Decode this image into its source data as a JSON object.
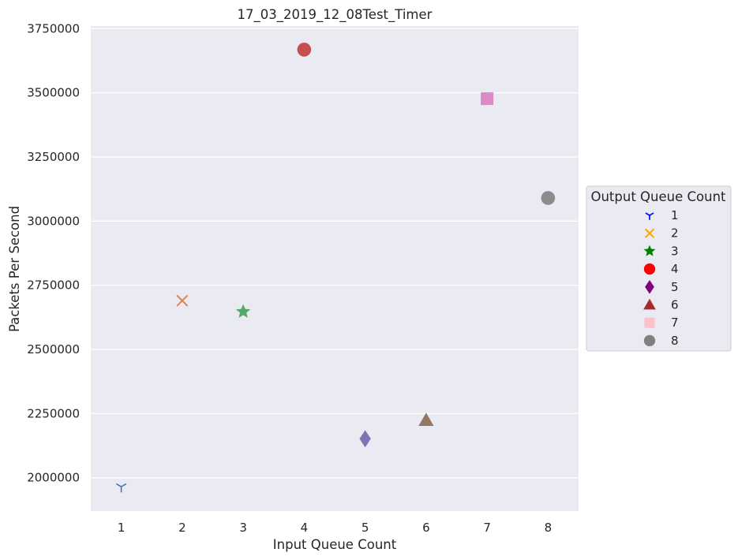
{
  "chart_data": {
    "type": "scatter",
    "title": "17_03_2019_12_08Test_Timer",
    "xlabel": "Input Queue Count",
    "ylabel": "Packets Per Second",
    "xlim": [
      0.5,
      8.5
    ],
    "ylim": [
      1870000,
      3760000
    ],
    "xticks": [
      1,
      2,
      3,
      4,
      5,
      6,
      7,
      8
    ],
    "xtick_labels": [
      "1",
      "2",
      "3",
      "4",
      "5",
      "6",
      "7",
      "8"
    ],
    "yticks": [
      2000000,
      2250000,
      2500000,
      2750000,
      3000000,
      3250000,
      3500000,
      3750000
    ],
    "ytick_labels": [
      "2000000",
      "2250000",
      "2500000",
      "2750000",
      "3000000",
      "3250000",
      "3500000",
      "3750000"
    ],
    "grid": true,
    "background": "#eaeaf2",
    "legend": {
      "title": "Output Queue Count",
      "placement": "right",
      "entries": [
        {
          "label": "1",
          "marker": "tri_down",
          "color": "#0000ff"
        },
        {
          "label": "2",
          "marker": "x",
          "color": "#ffa500"
        },
        {
          "label": "3",
          "marker": "star",
          "color": "#008000"
        },
        {
          "label": "4",
          "marker": "circle",
          "color": "#ff0000"
        },
        {
          "label": "5",
          "marker": "diamond",
          "color": "#800080"
        },
        {
          "label": "6",
          "marker": "triangle",
          "color": "#a52a2a"
        },
        {
          "label": "7",
          "marker": "square",
          "color": "#ffc0cb"
        },
        {
          "label": "8",
          "marker": "circle",
          "color": "#808080"
        }
      ]
    },
    "points": [
      {
        "x": 1,
        "y": 1965000,
        "marker": "tri_down",
        "color": "#4c72b0"
      },
      {
        "x": 2,
        "y": 2690000,
        "marker": "x",
        "color": "#dd8452"
      },
      {
        "x": 3,
        "y": 2647000,
        "marker": "star",
        "color": "#55a868"
      },
      {
        "x": 4,
        "y": 3668000,
        "marker": "circle",
        "color": "#c44e52"
      },
      {
        "x": 5,
        "y": 2152000,
        "marker": "diamond",
        "color": "#8172b3"
      },
      {
        "x": 6,
        "y": 2224000,
        "marker": "triangle",
        "color": "#937860"
      },
      {
        "x": 7,
        "y": 3477000,
        "marker": "square",
        "color": "#da8bc3"
      },
      {
        "x": 8,
        "y": 3090000,
        "marker": "circle",
        "color": "#8c8c8c"
      }
    ]
  }
}
